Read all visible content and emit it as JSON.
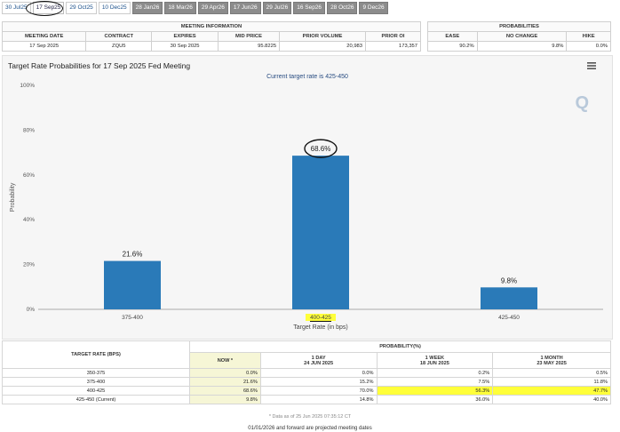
{
  "tabs": [
    {
      "label": "30 Jul25",
      "style": "plain"
    },
    {
      "label": "17 Sep25",
      "style": "active"
    },
    {
      "label": "29 Oct25",
      "style": "plain"
    },
    {
      "label": "10 Dec25",
      "style": "plain"
    },
    {
      "label": "28 Jan26",
      "style": "gray"
    },
    {
      "label": "18 Mar26",
      "style": "gray"
    },
    {
      "label": "29 Apr26",
      "style": "gray"
    },
    {
      "label": "17 Jun26",
      "style": "gray"
    },
    {
      "label": "29 Jul26",
      "style": "gray"
    },
    {
      "label": "16 Sep26",
      "style": "gray"
    },
    {
      "label": "28 Oct26",
      "style": "gray"
    },
    {
      "label": "9 Dec26",
      "style": "gray"
    }
  ],
  "meeting_info": {
    "heading": "MEETING INFORMATION",
    "columns": [
      "MEETING DATE",
      "CONTRACT",
      "EXPIRES",
      "MID PRICE",
      "PRIOR VOLUME",
      "PRIOR OI"
    ],
    "row": [
      "17 Sep 2025",
      "ZQU5",
      "30 Sep 2025",
      "95.8225",
      "20,983",
      "173,357"
    ]
  },
  "probabilities_box": {
    "heading": "PROBABILITIES",
    "columns": [
      "EASE",
      "NO CHANGE",
      "HIKE"
    ],
    "row": [
      "90.2%",
      "9.8%",
      "0.0%"
    ]
  },
  "chart": {
    "title": "Target Rate Probabilities for 17 Sep 2025 Fed Meeting",
    "subtitle": "Current target rate is 425-450"
  },
  "chart_data": {
    "type": "bar",
    "categories": [
      "375-400",
      "400-425",
      "425-450"
    ],
    "values": [
      21.6,
      68.6,
      9.8
    ],
    "data_labels": [
      "21.6%",
      "68.6%",
      "9.8%"
    ],
    "xlabel": "Target Rate (in bps)",
    "ylabel": "Probability",
    "ylim": [
      0,
      100
    ],
    "yticks": [
      "0%",
      "20%",
      "40%",
      "60%",
      "80%",
      "100%"
    ],
    "bar_color": "#2a7ab8",
    "grid": false
  },
  "prob_table": {
    "col_target": "TARGET RATE (BPS)",
    "col_prob": "PROBABILITY(%)",
    "sub_headers": [
      {
        "l1": "NOW *",
        "l2": ""
      },
      {
        "l1": "1 DAY",
        "l2": "24 JUN 2025"
      },
      {
        "l1": "1 WEEK",
        "l2": "18 JUN 2025"
      },
      {
        "l1": "1 MONTH",
        "l2": "23 MAY 2025"
      }
    ],
    "rows": [
      {
        "rate": "350-375",
        "now": "0.0%",
        "day": "0.0%",
        "week": "0.2%",
        "month": "0.5%"
      },
      {
        "rate": "375-400",
        "now": "21.6%",
        "day": "15.2%",
        "week": "7.5%",
        "month": "11.8%"
      },
      {
        "rate": "400-425",
        "now": "68.6%",
        "day": "70.0%",
        "week": "56.3%",
        "month": "47.7%"
      },
      {
        "rate": "425-450 (Current)",
        "now": "9.8%",
        "day": "14.8%",
        "week": "36.0%",
        "month": "40.0%"
      }
    ],
    "note": "* Data as of 25 Jun 2025 07:35:12 CT",
    "footer": "01/01/2026 and forward are projected meeting dates"
  },
  "colors": {
    "highlight": "#ffff3a",
    "now_bg": "#f6f6d6",
    "accent_text": "#274b80"
  },
  "icons": {
    "menu": "hamburger-menu-icon",
    "logo": "q-logo-icon"
  }
}
